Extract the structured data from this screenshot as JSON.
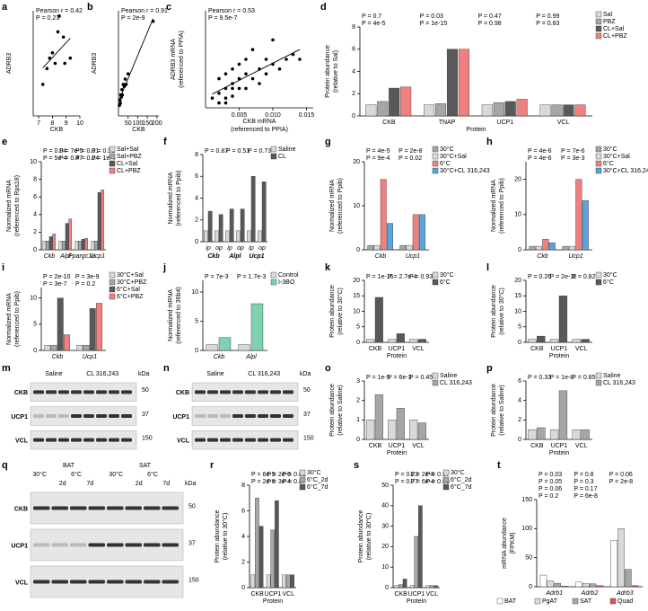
{
  "chart_data": [
    {
      "label": "a",
      "type": "scatter",
      "xlabel": "CKB",
      "ylabel": [
        "ADRB3"
      ],
      "annotations": [
        "Pearson r = 0.42",
        "P = 0.23"
      ],
      "x": [
        7.3,
        7.6,
        7.8,
        8.0,
        8.2,
        8.4,
        8.5,
        8.8,
        8.9,
        9.3
      ],
      "values": [
        0.3,
        0.45,
        0.55,
        0.6,
        0.5,
        0.8,
        0.95,
        0.75,
        0.5,
        0.55
      ],
      "xlim": [
        6.6,
        10
      ],
      "xticks": [
        7,
        8,
        9,
        10
      ],
      "ylim": [
        0,
        1
      ],
      "color": "#000000"
    },
    {
      "label": "b",
      "type": "scatter",
      "xlabel": "CKB",
      "ylabel": [
        "ADRB3"
      ],
      "annotations": [
        "Pearson r = 0.91",
        "P = 2e-9"
      ],
      "x": [
        5,
        8,
        10,
        12,
        15,
        18,
        20,
        25,
        30,
        35,
        40,
        50,
        180
      ],
      "values": [
        0.1,
        0.15,
        0.12,
        0.2,
        0.18,
        0.25,
        0.2,
        0.3,
        0.28,
        0.35,
        0.3,
        0.4,
        0.9
      ],
      "xlim": [
        0,
        210
      ],
      "xticks": [
        50,
        100,
        150,
        200
      ],
      "ylim": [
        0,
        1
      ],
      "color": "#000000"
    },
    {
      "label": "c",
      "type": "scatter",
      "xlabel": [
        "CKB mRNA",
        "(referenced to PPIA)"
      ],
      "ylabel": [
        "ADRB3 mRNA",
        "(referenced to PPIA)"
      ],
      "annotations": [
        "Pearson r = 0.53",
        "P = 9.5e-7"
      ],
      "x": [
        0.001,
        0.002,
        0.002,
        0.003,
        0.003,
        0.003,
        0.004,
        0.004,
        0.004,
        0.005,
        0.005,
        0.005,
        0.006,
        0.006,
        0.007,
        0.007,
        0.008,
        0.008,
        0.009,
        0.009,
        0.01,
        0.01,
        0.011,
        0.012,
        0.013,
        0.014,
        0.002,
        0.003,
        0.004,
        0.006
      ],
      "values": [
        0.1,
        0.15,
        0.3,
        0.2,
        0.35,
        0.1,
        0.25,
        0.4,
        0.2,
        0.3,
        0.45,
        0.2,
        0.35,
        0.5,
        0.3,
        0.6,
        0.4,
        0.25,
        0.5,
        0.35,
        0.45,
        0.7,
        0.4,
        0.5,
        0.55,
        0.5,
        0.05,
        0.05,
        0.12,
        0.2
      ],
      "xlim": [
        0,
        0.016
      ],
      "xticks": [
        0.005,
        {
          "value": 0.01,
          "label": "0.010"
        },
        0.015
      ],
      "ylim": [
        0,
        1
      ],
      "color": "#000000"
    },
    {
      "label": "d",
      "type": "bar",
      "ylabel": [
        "Protein abundance",
        "(relative to Sal)"
      ],
      "xlabel": "Protein",
      "categories": [
        "CKB",
        "TNAP",
        "UCP1",
        "VCL"
      ],
      "series": [
        {
          "name": "Sal",
          "color": "#d9d9d9",
          "values": [
            1,
            1,
            1,
            1
          ]
        },
        {
          "name": "PBZ",
          "color": "#a6a6a6",
          "values": [
            1.3,
            1.1,
            1.2,
            1
          ]
        },
        {
          "name": "CL+Sal",
          "color": "#595959",
          "values": [
            2.5,
            6,
            1.3,
            1
          ]
        },
        {
          "name": "CL+PBZ",
          "color": "#f08080",
          "values": [
            2.6,
            6,
            1.5,
            1
          ]
        }
      ],
      "ylim": [
        0,
        8
      ],
      "yticks": [
        0,
        2,
        4,
        6,
        8
      ],
      "annotations": [
        "P = 0.7",
        "P = 4e-5",
        "P = 0.03",
        "P = 1e-15",
        "P = 0.47",
        "P = 0.98",
        "P = 0.99",
        "P = 0.83"
      ]
    },
    {
      "label": "e",
      "type": "bar",
      "ylabel": [
        "Normalized mRNA",
        "(referenced to Rps18)"
      ],
      "categories": [
        "Ckb",
        "Alpl",
        "Ppargc1a",
        "Ucp1"
      ],
      "series": [
        {
          "name": "Sal+Sal",
          "color": "#d9d9d9",
          "values": [
            1,
            1,
            1,
            1
          ]
        },
        {
          "name": "Sal+PBZ",
          "color": "#a6a6a6",
          "values": [
            1,
            1,
            1,
            1
          ]
        },
        {
          "name": "CL+Sal",
          "color": "#595959",
          "values": [
            1.5,
            3,
            1.2,
            6.5
          ]
        },
        {
          "name": "CL+PBZ",
          "color": "#f08080",
          "values": [
            1.8,
            3.5,
            1.3,
            6.8
          ]
        }
      ],
      "ylim": [
        0,
        10
      ],
      "yticks": [
        0,
        2,
        4,
        6,
        8,
        10
      ],
      "annotations": [
        "P = 0.04",
        "P = 5e-4",
        "P = 7e-5",
        "P = 0.47",
        "P = 0.01",
        "P = 0.24",
        "P = 0.53",
        "P = 1e-4"
      ]
    },
    {
      "label": "f",
      "type": "bar",
      "ylabel": [
        "Normalized mRNA",
        "(referenced to Ppib)"
      ],
      "categories": [
        "ip",
        "op",
        "ip",
        "op",
        "ip",
        "op"
      ],
      "groups": [
        "Ckb",
        "Alpl",
        "Ucp1"
      ],
      "series": [
        {
          "name": "Saline",
          "color": "#d9d9d9",
          "values": [
            1,
            1,
            1,
            1,
            1,
            1
          ]
        },
        {
          "name": "CL",
          "color": "#595959",
          "values": [
            2.8,
            2.5,
            3,
            3,
            6,
            5.5
          ]
        }
      ],
      "ylim": [
        0,
        8
      ],
      "yticks": [
        0,
        2,
        4,
        6,
        8
      ],
      "annotations": [
        "P = 0.87",
        "P = 0.51",
        "P = 0.73"
      ]
    },
    {
      "label": "g",
      "type": "bar",
      "ylabel": [
        "Normalized mRNA",
        "(referenced to Ppib)"
      ],
      "categories": [
        "Ckb",
        "Ucp1"
      ],
      "series": [
        {
          "name": "30°C",
          "color": "#a6a6a6",
          "values": [
            1,
            1
          ]
        },
        {
          "name": "30°C+Sal",
          "color": "#d9d9d9",
          "values": [
            1,
            1
          ]
        },
        {
          "name": "6°C",
          "color": "#f08080",
          "values": [
            16,
            8
          ]
        },
        {
          "name": "30°C+CL 316,243",
          "color": "#5ba3d9",
          "values": [
            6,
            8
          ]
        }
      ],
      "ylim": [
        0,
        20
      ],
      "yticks": [
        0,
        10,
        20
      ],
      "annotations": [
        "P = 4e-5",
        "P = 9e-4",
        "P = 2e-8",
        "P = 0.02"
      ]
    },
    {
      "label": "h",
      "type": "bar",
      "ylabel": [
        "Normalized mRNA",
        "(referenced to Ppib)"
      ],
      "categories": [
        "Ckb",
        "Ucp1"
      ],
      "series": [
        {
          "name": "30°C",
          "color": "#a6a6a6",
          "values": [
            1,
            1
          ]
        },
        {
          "name": "30°C+Sal",
          "color": "#d9d9d9",
          "values": [
            1,
            1
          ]
        },
        {
          "name": "6°C",
          "color": "#f08080",
          "values": [
            3,
            20
          ]
        },
        {
          "name": "30°C+CL 316,243",
          "color": "#5ba3d9",
          "values": [
            2,
            14
          ]
        }
      ],
      "ylim": [
        0,
        25
      ],
      "yticks": [
        0,
        10,
        20
      ],
      "annotations": [
        "P = 4e-6",
        "P = 4e-6",
        "P = 7e-6",
        "P = 3e-3"
      ]
    },
    {
      "label": "i",
      "type": "bar",
      "ylabel": [
        "Normalized mRNA",
        "(referenced to Ppib)"
      ],
      "categories": [
        "Ckb",
        "Ucp1"
      ],
      "series": [
        {
          "name": "30°C+Sal",
          "color": "#d9d9d9",
          "values": [
            1,
            1
          ]
        },
        {
          "name": "30°C+PBZ",
          "color": "#a6a6a6",
          "values": [
            1,
            1
          ]
        },
        {
          "name": "6°C+Sal",
          "color": "#595959",
          "values": [
            10,
            8
          ]
        },
        {
          "name": "6°C+PBZ",
          "color": "#f08080",
          "values": [
            3,
            9
          ]
        }
      ],
      "ylim": [
        0,
        12
      ],
      "yticks": [
        0,
        5,
        10
      ],
      "annotations": [
        "P = 2e-10",
        "P = 3e-7",
        "P = 3e-9",
        "P = 0.2"
      ]
    },
    {
      "label": "j",
      "type": "bar",
      "ylabel": [
        "Normalized mRNA",
        "(referenced to 36b4)"
      ],
      "categories": [
        "Ckb",
        "Alpl"
      ],
      "series": [
        {
          "name": "Control",
          "color": "#d9d9d9",
          "values": [
            1,
            1
          ]
        },
        {
          "name": "I-3BO",
          "color": "#7fd1b0",
          "values": [
            2.2,
            8
          ]
        }
      ],
      "ylim": [
        0,
        12
      ],
      "yticks": [
        0,
        5,
        10
      ],
      "annotations": [
        "P = 7e-3",
        "P = 1.7e-3"
      ]
    },
    {
      "label": "k",
      "type": "bar",
      "ylabel": [
        "Protein abundance",
        "(relative to 30°C)"
      ],
      "xlabel": "Protein",
      "categories": [
        "CKB",
        "UCP1",
        "VCL"
      ],
      "series": [
        {
          "name": "30°C",
          "color": "#d9d9d9",
          "values": [
            1,
            1,
            1
          ]
        },
        {
          "name": "6°C",
          "color": "#595959",
          "values": [
            14.5,
            2.8,
            1
          ]
        }
      ],
      "ylim": [
        0,
        20
      ],
      "yticks": [
        0,
        5,
        10,
        15,
        20
      ],
      "annotations": [
        "P = 1e-15",
        "P = 2.7e-4",
        "P = 0.93"
      ]
    },
    {
      "label": "l",
      "type": "bar",
      "ylabel": [
        "Protein abundance",
        "(relative to 30°C)"
      ],
      "xlabel": "Protein",
      "categories": [
        "CKB",
        "UCP1",
        "VCL"
      ],
      "series": [
        {
          "name": "30°C",
          "color": "#d9d9d9",
          "values": [
            1,
            1,
            1
          ]
        },
        {
          "name": "6°C",
          "color": "#595959",
          "values": [
            2,
            15,
            1
          ]
        }
      ],
      "ylim": [
        0,
        20
      ],
      "yticks": [
        0,
        5,
        10,
        15,
        20
      ],
      "annotations": [
        "P = 0.26",
        "P = 2e-11",
        "P = 0.82"
      ]
    },
    {
      "label": "o",
      "type": "bar",
      "ylabel": [
        "Protein abundance",
        "(relative to Saline)"
      ],
      "xlabel": "Protein",
      "categories": [
        "CKB",
        "UCP1",
        "VCL"
      ],
      "series": [
        {
          "name": "Saline",
          "color": "#d9d9d9",
          "values": [
            1,
            1,
            1
          ]
        },
        {
          "name": "CL 316,243",
          "color": "#a6a6a6",
          "values": [
            2.3,
            1.6,
            0.85
          ]
        }
      ],
      "ylim": [
        0,
        3
      ],
      "yticks": [
        0,
        1,
        2,
        3
      ],
      "annotations": [
        "P = 1e-5",
        "P = 6e-3",
        "P = 0.45"
      ]
    },
    {
      "label": "p",
      "type": "bar",
      "ylabel": [
        "Protein abundance",
        "(relative to Saline)"
      ],
      "xlabel": "Protein",
      "categories": [
        "CKB",
        "UCP1",
        "VCL"
      ],
      "series": [
        {
          "name": "Saline",
          "color": "#d9d9d9",
          "values": [
            1,
            1,
            1
          ]
        },
        {
          "name": "CL 316,243",
          "color": "#a6a6a6",
          "values": [
            1.2,
            5,
            1
          ]
        }
      ],
      "ylim": [
        0,
        6
      ],
      "yticks": [
        0,
        2,
        4,
        6
      ],
      "annotations": [
        "P = 0.33",
        "P = 1e-8",
        "P = 0.85"
      ]
    },
    {
      "label": "r",
      "type": "bar",
      "ylabel": [
        "Protein abundance",
        "(relative to 30°C)"
      ],
      "xlabel": "Protein",
      "categories": [
        "CKB",
        "UCP1",
        "VCL"
      ],
      "series": [
        {
          "name": "30°C",
          "color": "#d9d9d9",
          "values": [
            1,
            1,
            1
          ]
        },
        {
          "name": "6°C_2d",
          "color": "#a6a6a6",
          "values": [
            7,
            4.5,
            1
          ]
        },
        {
          "name": "6°C_7d",
          "color": "#595959",
          "values": [
            4.8,
            6.8,
            1
          ]
        }
      ],
      "ylim": [
        0,
        8
      ],
      "yticks": [
        0,
        2,
        4,
        6,
        8
      ],
      "annotations": [
        "P = 6e-5",
        "P = 2e-6",
        "P = 2e-6",
        "P = 3e-4",
        "P = 0.61",
        "P = 0.87"
      ]
    },
    {
      "label": "s",
      "type": "bar",
      "ylabel": [
        "Protein abundance",
        "(relative to 30°C)"
      ],
      "xlabel": "Protein",
      "categories": [
        "CKB",
        "UCP1",
        "VCL"
      ],
      "series": [
        {
          "name": "30°C",
          "color": "#d9d9d9",
          "values": [
            1,
            1,
            1
          ]
        },
        {
          "name": "6°C_2d",
          "color": "#a6a6a6",
          "values": [
            1.5,
            25,
            1
          ]
        },
        {
          "name": "6°C_7d",
          "color": "#595959",
          "values": [
            4.2,
            40,
            1
          ]
        }
      ],
      "ylim": [
        0,
        50
      ],
      "yticks": [
        0,
        10,
        20,
        30,
        40,
        50
      ],
      "annotations": [
        "P = 0.23",
        "P = 0.77",
        "P = 2e-8",
        "P = 6e-4",
        "P = 0.97",
        "P = 0.99"
      ]
    },
    {
      "label": "t",
      "type": "bar",
      "ylabel": [
        "mRNA abundance",
        "(FPKM)"
      ],
      "categories": [
        "Adrb1",
        "Adrb2",
        "Adrb3"
      ],
      "series": [
        {
          "name": "BAT",
          "color": "#ffffff",
          "values": [
            20,
            8,
            80
          ]
        },
        {
          "name": "PgAT",
          "color": "#d9d9d9",
          "values": [
            10,
            6,
            100
          ]
        },
        {
          "name": "SAT",
          "color": "#a6a6a6",
          "values": [
            6,
            5,
            30
          ]
        },
        {
          "name": "Quad",
          "color": "#e05050",
          "values": [
            1,
            2,
            2
          ]
        }
      ],
      "ylim": [
        0,
        150
      ],
      "yticks": [
        0,
        50,
        100,
        150
      ],
      "annotations": [
        "P = 0.03",
        "P = 0.05",
        "P = 0.06",
        "P = 0.2",
        "P = 0.8",
        "P = 0.3",
        "P = 0.17",
        "P = 6e-8",
        "P = 0.06",
        "P = 2e-8"
      ]
    }
  ],
  "blots": [
    {
      "label": "m",
      "conditions": [
        "Saline",
        "CL 316,243"
      ],
      "unit": "kDa",
      "proteins": [
        "CKB",
        "UCP1",
        "VCL"
      ],
      "markers": [
        "50",
        "37",
        "150"
      ]
    },
    {
      "label": "n",
      "conditions": [
        "Saline",
        "CL 316,243"
      ],
      "unit": "kDa",
      "proteins": [
        "CKB",
        "UCP1",
        "VCL"
      ],
      "markers": [
        "50",
        "37",
        "150"
      ]
    },
    {
      "label": "q",
      "tissues": [
        "BAT",
        "SAT"
      ],
      "conditions": [
        "30°C",
        "6°C",
        "2d",
        "7d",
        "30°C",
        "6°C",
        "2d",
        "7d"
      ],
      "unit": "kDa",
      "proteins": [
        "CKB",
        "UCP1",
        "VCL"
      ],
      "markers": [
        "50",
        "37",
        "150"
      ]
    }
  ]
}
